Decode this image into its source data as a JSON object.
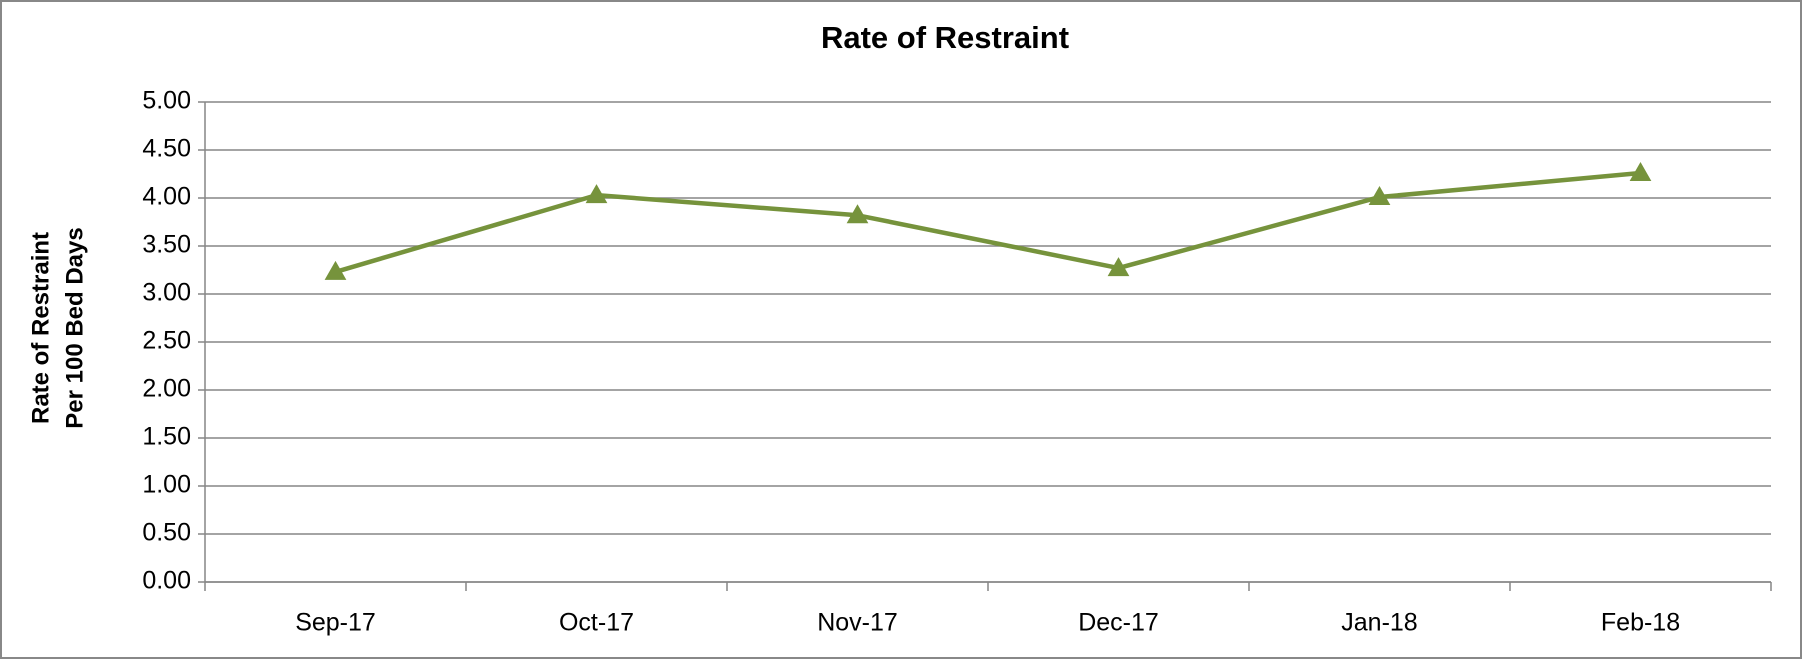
{
  "chart_data": {
    "type": "line",
    "title": "Rate of Restraint",
    "ylabel": [
      "Rate of Restraint",
      "Per 100 Bed Days"
    ],
    "categories": [
      "Sep-17",
      "Oct-17",
      "Nov-17",
      "Dec-17",
      "Jan-18",
      "Feb-18"
    ],
    "series": [
      {
        "name": "Rate of Restraint",
        "color": "#76933c",
        "marker": "triangle",
        "values": [
          3.23,
          4.03,
          3.82,
          3.27,
          4.01,
          4.26
        ]
      }
    ],
    "ylim": [
      0,
      5
    ],
    "yticks": [
      {
        "value": 0,
        "label": "0.00"
      },
      {
        "value": 0.5,
        "label": "0.50"
      },
      {
        "value": 1,
        "label": "1.00"
      },
      {
        "value": 1.5,
        "label": "1.50"
      },
      {
        "value": 2,
        "label": "2.00"
      },
      {
        "value": 2.5,
        "label": "2.50"
      },
      {
        "value": 3,
        "label": "3.00"
      },
      {
        "value": 3.5,
        "label": "3.50"
      },
      {
        "value": 4,
        "label": "4.00"
      },
      {
        "value": 4.5,
        "label": "4.50"
      },
      {
        "value": 5,
        "label": "5.00"
      }
    ],
    "grid": true
  }
}
